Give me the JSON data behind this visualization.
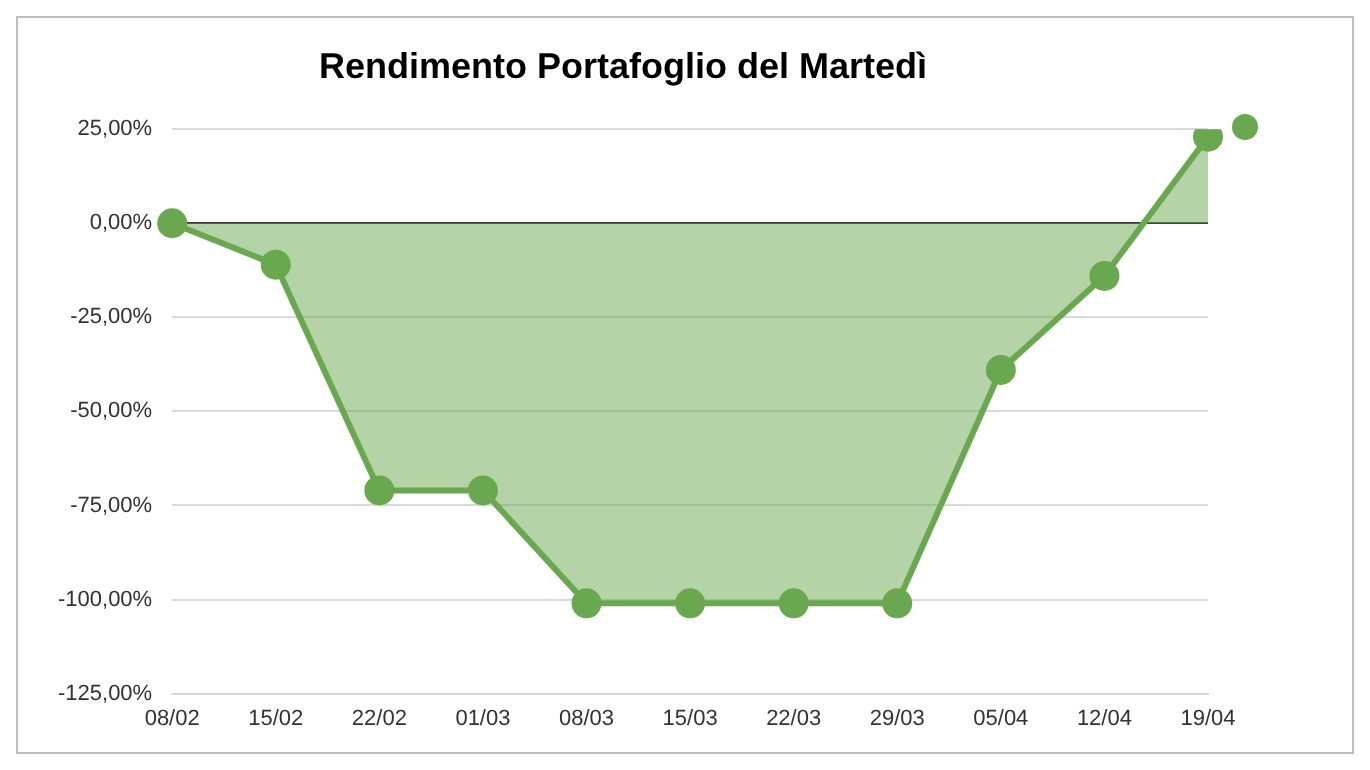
{
  "chart_data": {
    "type": "area",
    "title": "Rendimento Portafoglio del Martedì",
    "categories": [
      "08/02",
      "15/02",
      "22/02",
      "01/03",
      "08/03",
      "15/03",
      "22/03",
      "29/03",
      "05/04",
      "12/04",
      "19/04"
    ],
    "series": [
      {
        "color": "#6aa84f",
        "values": [
          0,
          -11,
          -71,
          -71,
          -101,
          -101,
          -101,
          -101,
          -39,
          -14,
          23
        ]
      }
    ],
    "ylim": [
      -125,
      25
    ],
    "yticks": [
      {
        "value": -125,
        "label": "-125,00%"
      },
      {
        "value": -100,
        "label": "-100,00%"
      },
      {
        "value": -75,
        "label": "-75,00%"
      },
      {
        "value": -50,
        "label": "-50,00%"
      },
      {
        "value": -25,
        "label": "-25,00%"
      },
      {
        "value": 0,
        "label": "0,00%"
      },
      {
        "value": 25,
        "label": "25,00%"
      }
    ],
    "grid": "y",
    "marker": "circle",
    "legend": false
  }
}
